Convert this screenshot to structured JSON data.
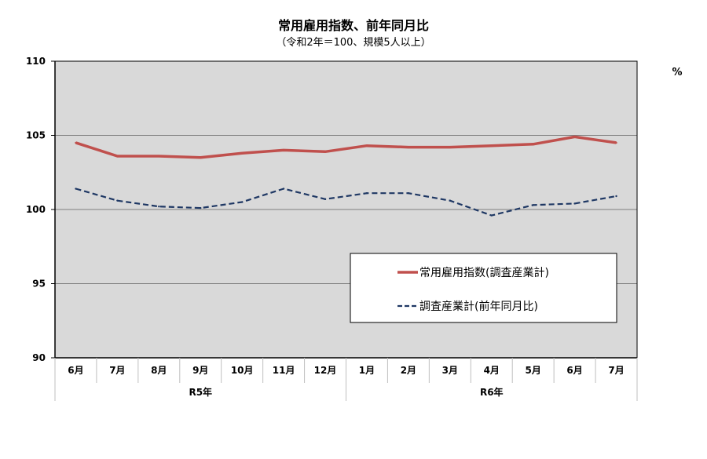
{
  "chart_data": {
    "type": "line",
    "title": "常用雇用指数、前年同月比",
    "subtitle": "（令和2年＝100、規模5人以上）",
    "unit_label": "%",
    "categories": [
      "6月",
      "7月",
      "8月",
      "9月",
      "10月",
      "11月",
      "12月",
      "1月",
      "2月",
      "3月",
      "4月",
      "5月",
      "6月",
      "7月"
    ],
    "year_groups": [
      {
        "label": "R5年",
        "count": 7
      },
      {
        "label": "R6年",
        "count": 7
      }
    ],
    "ylim": [
      90,
      110
    ],
    "yticks": [
      "90",
      "95",
      "100",
      "105",
      "110"
    ],
    "grid": true,
    "legend_position": "center-right",
    "series": [
      {
        "name": "常用雇用指数(調査産業計)",
        "color": "#c0504d",
        "style": "solid",
        "values": [
          104.5,
          103.6,
          103.6,
          103.5,
          103.8,
          104.0,
          103.9,
          104.3,
          104.2,
          104.2,
          104.3,
          104.4,
          104.9,
          104.5
        ]
      },
      {
        "name": "調査産業計(前年同月比)",
        "color": "#1f3864",
        "style": "dashed",
        "values": [
          101.4,
          100.6,
          100.2,
          100.1,
          100.5,
          101.4,
          100.7,
          101.1,
          101.1,
          100.6,
          99.6,
          100.3,
          100.4,
          100.9
        ]
      }
    ]
  }
}
